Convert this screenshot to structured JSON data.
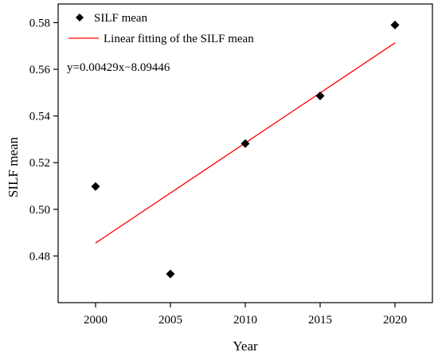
{
  "chart_data": {
    "type": "scatter",
    "xlabel": "Year",
    "ylabel": "SILF mean",
    "xlim": [
      1997.5,
      2022.5
    ],
    "ylim": [
      0.46,
      0.588
    ],
    "x_ticks": [
      "2000",
      "2005",
      "2010",
      "2015",
      "2020"
    ],
    "y_ticks": [
      "0.48",
      "0.50",
      "0.52",
      "0.54",
      "0.56",
      "0.58"
    ],
    "series": [
      {
        "name": "SILF mean",
        "kind": "scatter",
        "marker": "diamond",
        "color": "#000000",
        "x": [
          2000,
          2005,
          2010,
          2015,
          2020
        ],
        "y": [
          0.5098,
          0.4723,
          0.5282,
          0.5486,
          0.579
        ]
      },
      {
        "name": "Linear fitting of the SILF mean",
        "kind": "line",
        "color": "#ff0000",
        "slope": 0.00429,
        "intercept": -8.09446,
        "x": [
          2000,
          2020
        ]
      }
    ],
    "annotation": "y=0.00429x−8.09446",
    "legend_position": "top-left",
    "grid": false
  }
}
